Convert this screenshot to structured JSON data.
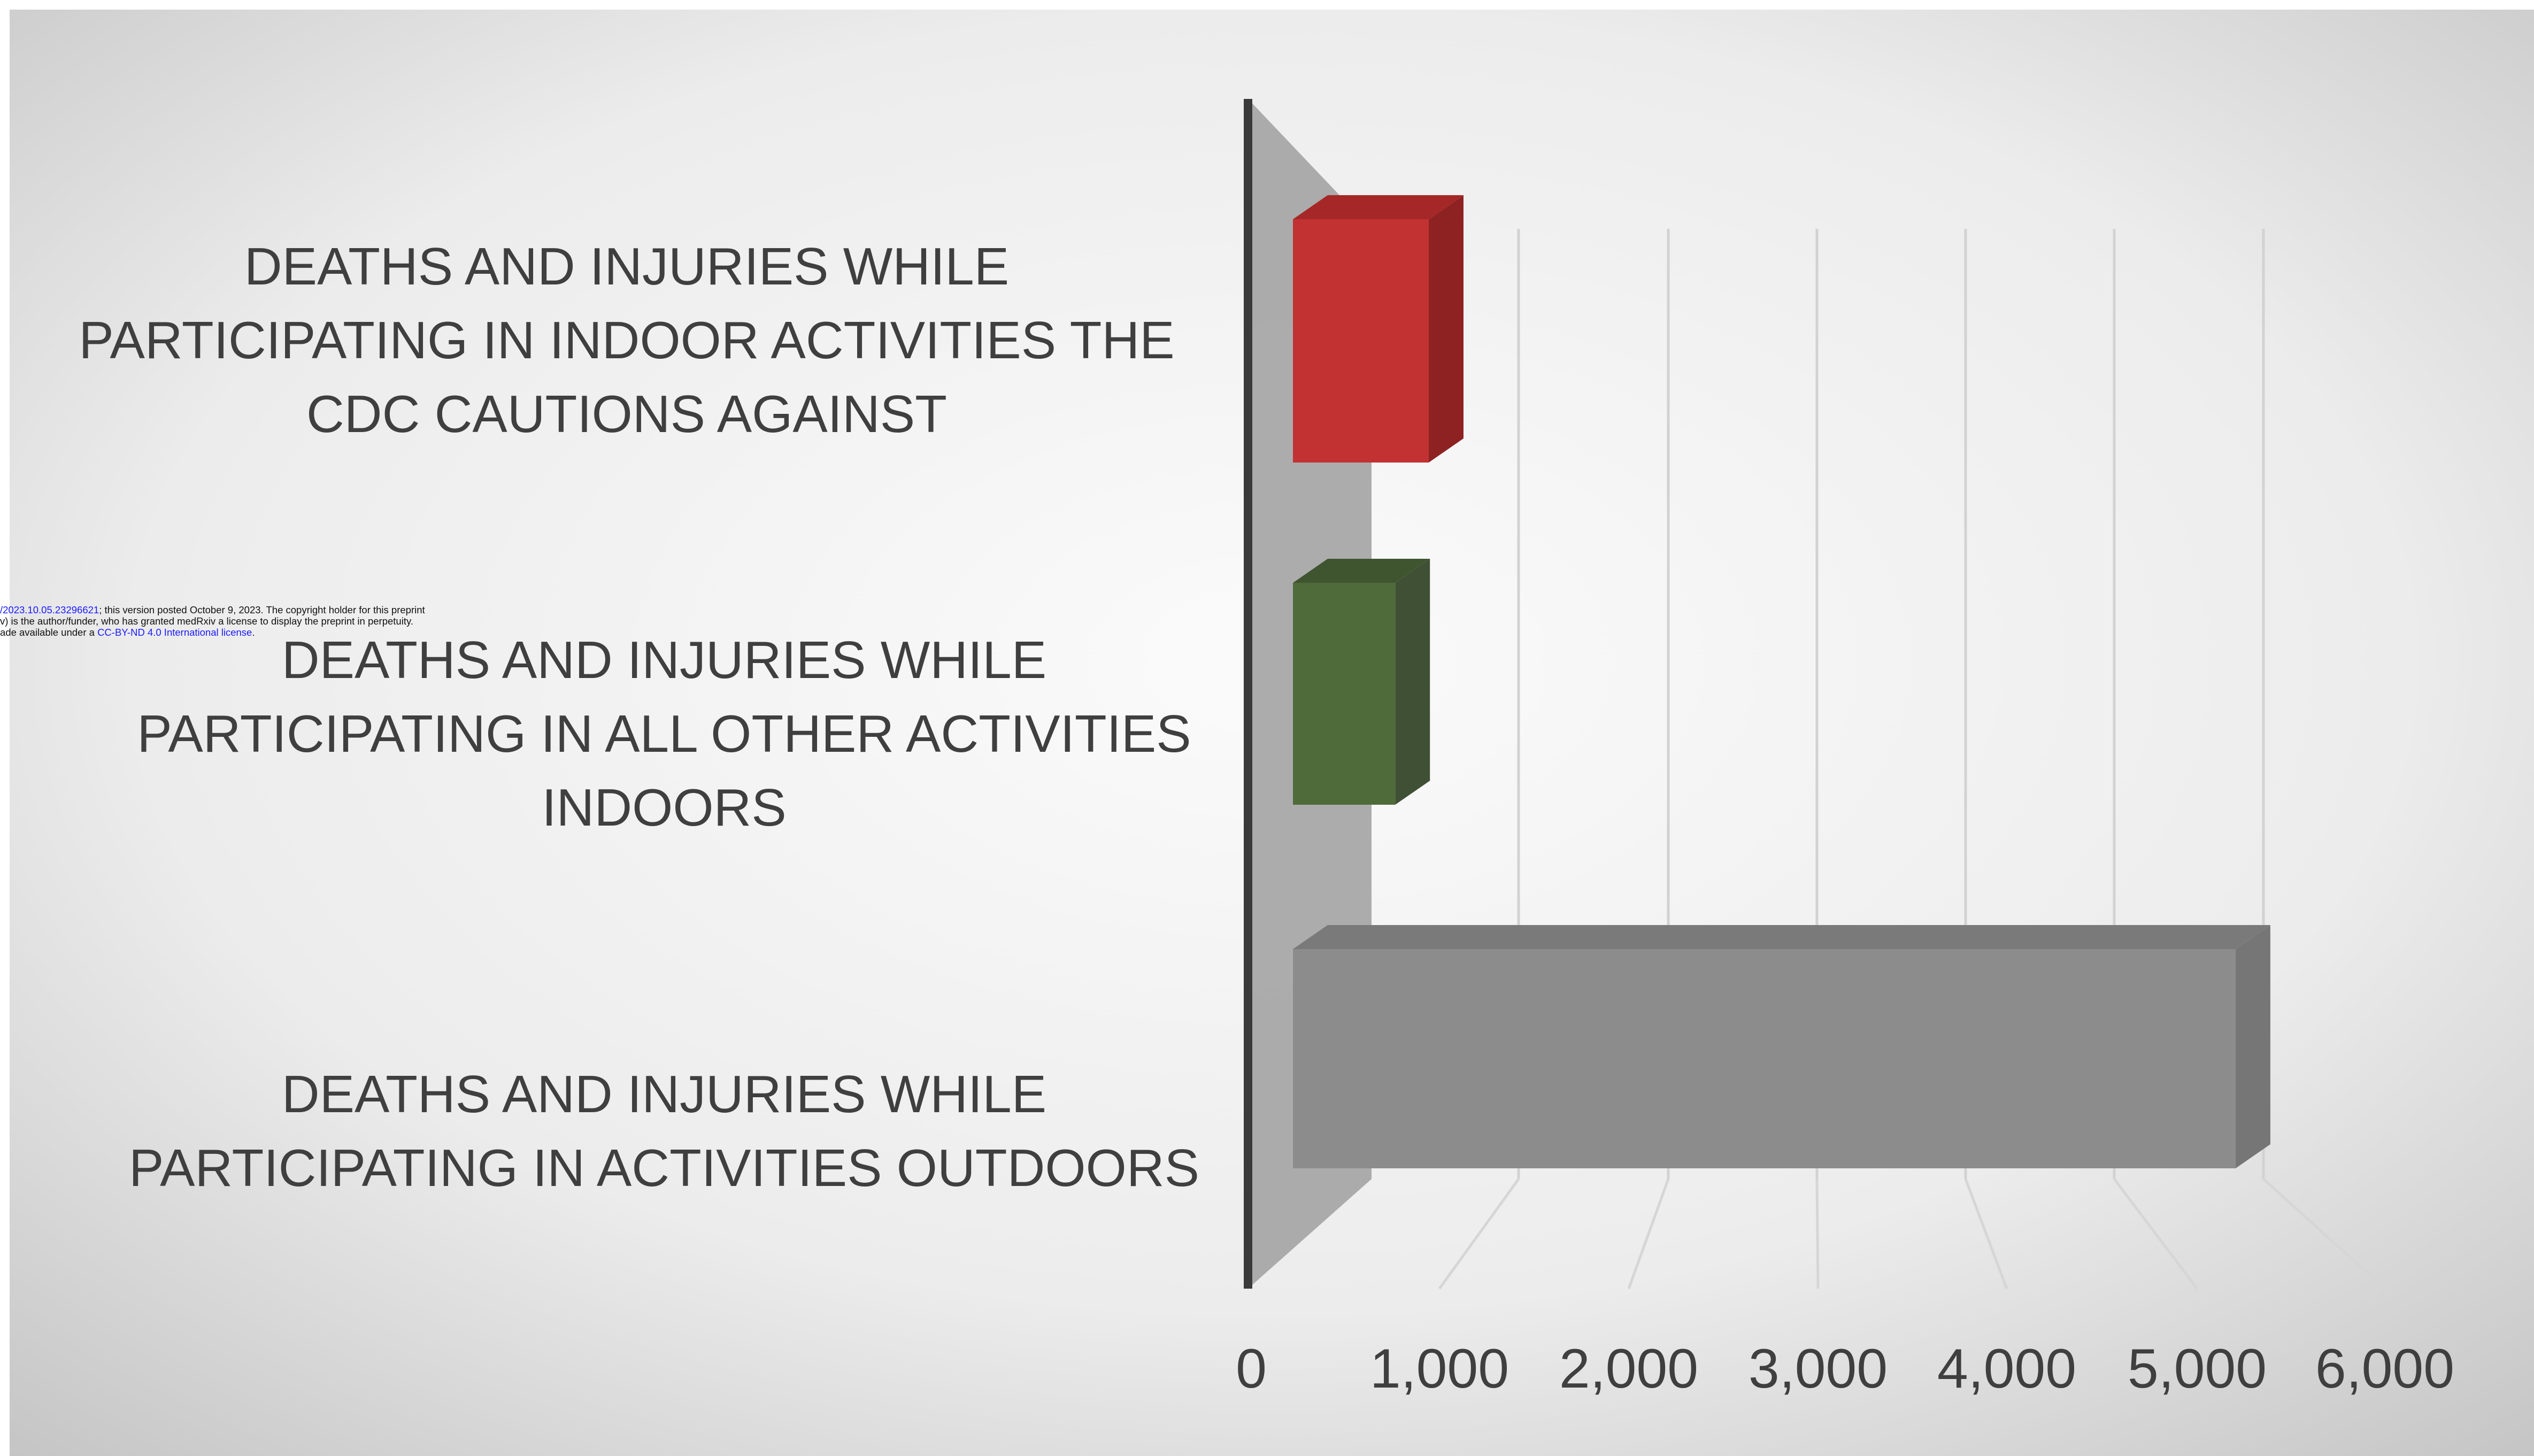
{
  "chart_data": {
    "type": "bar",
    "orientation": "horizontal",
    "style": "3d-clustered",
    "title": "",
    "xlabel": "",
    "ylabel": "",
    "xlim": [
      0,
      6000
    ],
    "x_ticks": [
      "0",
      "1,000",
      "2,000",
      "3,000",
      "4,000",
      "5,000",
      "6,000"
    ],
    "grid": true,
    "legend": "none",
    "categories": [
      "DEATHS AND INJURIES WHILE PARTICIPATING IN INDOOR ACTIVITIES THE CDC CAUTIONS AGAINST",
      "DEATHS AND INJURIES WHILE PARTICIPATING IN ALL OTHER ACTIVITIES INDOORS",
      "DEATHS AND INJURIES WHILE PARTICIPATING IN ACTIVITIES OUTDOORS"
    ],
    "category_lines": [
      [
        "DEATHS AND INJURIES WHILE",
        "PARTICIPATING IN INDOOR ACTIVITIES THE",
        "CDC CAUTIONS AGAINST"
      ],
      [
        "DEATHS AND INJURIES WHILE",
        "PARTICIPATING IN ALL OTHER ACTIVITIES",
        "INDOORS"
      ],
      [
        "DEATHS AND INJURIES WHILE",
        "PARTICIPATING IN ACTIVITIES OUTDOORS"
      ]
    ],
    "values": [
      850,
      640,
      5900
    ],
    "bar_colors": [
      "#c23232",
      "#4f6b3a",
      "#8c8c8c"
    ]
  },
  "preprint_note": {
    "line1_link": "/2023.10.05.23296621",
    "line1_text": "; this version posted October 9, 2023. The copyright holder for this preprint",
    "line2_text": "v) is the author/funder, who has granted medRxiv a license to display the preprint in perpetuity.",
    "line3_text": "ade available under a ",
    "line3_link": "CC-BY-ND 4.0 International license",
    "line3_end": "."
  },
  "colors": {
    "background_edge": "#c4c4c4",
    "background_center": "#fbfbfb",
    "wall": "#a5a5a5",
    "axis": "#3a3a3a",
    "text": "#3f3f3f"
  }
}
